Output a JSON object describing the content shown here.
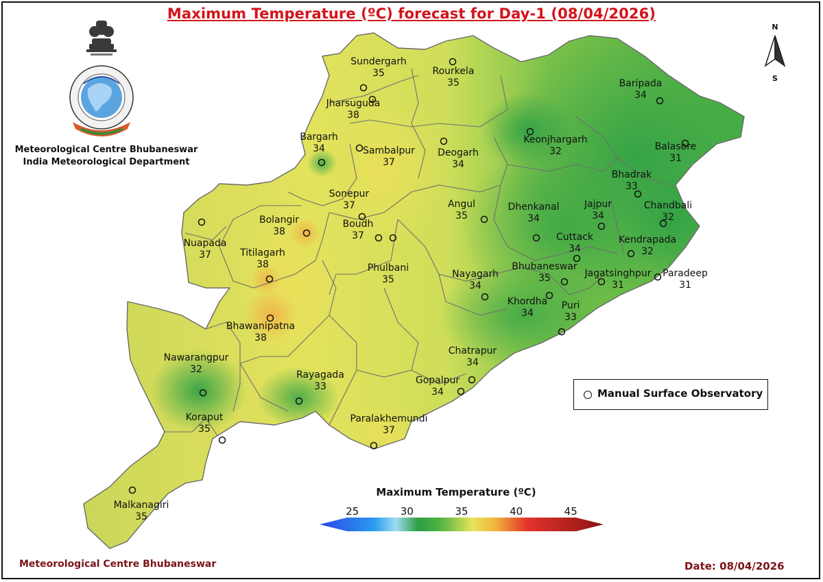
{
  "title": "Maximum Temperature (ºC) forecast for Day-1 (08/04/2026)",
  "organization": {
    "line1": "Meteorological Centre Bhubaneswar",
    "line2": "India Meteorological Department"
  },
  "compass": {
    "north": "N",
    "south": "S"
  },
  "districts": [
    {
      "name": "Sundergarh",
      "temp": "35"
    },
    {
      "name": "Rourkela",
      "temp": "35"
    },
    {
      "name": "Jharsuguda",
      "temp": "38"
    },
    {
      "name": "Baripada",
      "temp": "34"
    },
    {
      "name": "Bargarh",
      "temp": "34"
    },
    {
      "name": "Sambalpur",
      "temp": "37"
    },
    {
      "name": "Deogarh",
      "temp": "34"
    },
    {
      "name": "Keonjhargarh",
      "temp": "32"
    },
    {
      "name": "Balasore",
      "temp": "31"
    },
    {
      "name": "Bhadrak",
      "temp": "33"
    },
    {
      "name": "Sonepur",
      "temp": "37"
    },
    {
      "name": "Angul",
      "temp": "35"
    },
    {
      "name": "Dhenkanal",
      "temp": "34"
    },
    {
      "name": "Jajpur",
      "temp": "34"
    },
    {
      "name": "Chandbali",
      "temp": "32"
    },
    {
      "name": "Bolangir",
      "temp": "38"
    },
    {
      "name": "Boudh",
      "temp": "37"
    },
    {
      "name": "Nuapada",
      "temp": "37"
    },
    {
      "name": "Cuttack",
      "temp": "34"
    },
    {
      "name": "Kendrapada",
      "temp": "32"
    },
    {
      "name": "Titilagarh",
      "temp": "38"
    },
    {
      "name": "Phulbani",
      "temp": "35"
    },
    {
      "name": "Bhubaneswar",
      "temp": "35"
    },
    {
      "name": "Nayagarh",
      "temp": "34"
    },
    {
      "name": "Jagatsinghpur",
      "temp": "31"
    },
    {
      "name": "Paradeep",
      "temp": "31"
    },
    {
      "name": "Khordha",
      "temp": "34"
    },
    {
      "name": "Puri",
      "temp": "33"
    },
    {
      "name": "Bhawanipatna",
      "temp": "38"
    },
    {
      "name": "Chatrapur",
      "temp": "34"
    },
    {
      "name": "Nawarangpur",
      "temp": "32"
    },
    {
      "name": "Rayagada",
      "temp": "33"
    },
    {
      "name": "Gopalpur",
      "temp": "34"
    },
    {
      "name": "Koraput",
      "temp": "35"
    },
    {
      "name": "Paralakhemundi",
      "temp": "37"
    },
    {
      "name": "Malkanagiri",
      "temp": "35"
    }
  ],
  "legend": {
    "symbol_label": "Manual Surface Observatory"
  },
  "colorbar": {
    "title": "Maximum Temperature (ºC)",
    "ticks": [
      "25",
      "30",
      "35",
      "40",
      "45"
    ],
    "min": 22,
    "max": 48,
    "stops": [
      {
        "value": 22,
        "color": "#2c45e8"
      },
      {
        "value": 27,
        "color": "#2a9bf0"
      },
      {
        "value": 29,
        "color": "#9fdcf2"
      },
      {
        "value": 31,
        "color": "#2e9e44"
      },
      {
        "value": 33,
        "color": "#4fb341"
      },
      {
        "value": 36,
        "color": "#e7e35a"
      },
      {
        "value": 38,
        "color": "#f0b73d"
      },
      {
        "value": 41,
        "color": "#e4322b"
      },
      {
        "value": 48,
        "color": "#8a1414"
      }
    ]
  },
  "footer": {
    "left": "Meteorological Centre Bhubaneswar",
    "right": "Date: 08/04/2026"
  }
}
